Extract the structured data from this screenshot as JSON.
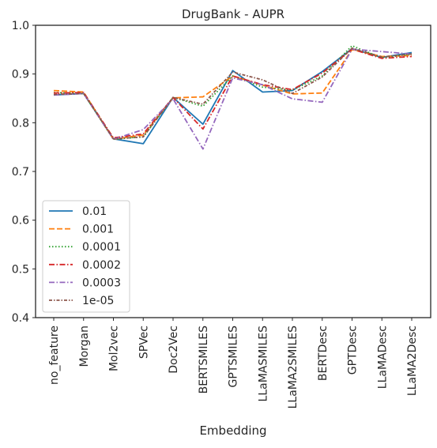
{
  "chart_data": {
    "type": "line",
    "title": "DrugBank - AUPR",
    "xlabel": "Embedding",
    "ylabel": "",
    "ylim": [
      0.4,
      1.0
    ],
    "yticks": [
      0.4,
      0.5,
      0.6,
      0.7,
      0.8,
      0.9,
      1.0
    ],
    "ytick_labels": [
      "0.4",
      "0.5",
      "0.6",
      "0.7",
      "0.8",
      "0.9",
      "1.0"
    ],
    "grid": false,
    "legend_position": "lower-left",
    "categories": [
      "no_feature",
      "Morgan",
      "Mol2vec",
      "SPVec",
      "Doc2Vec",
      "BERTSMILES",
      "GPTSMILES",
      "LLaMASMILES",
      "LLaMA2SMILES",
      "BERTDesc",
      "GPTDesc",
      "LLaMADesc",
      "LLaMA2Desc"
    ],
    "series": [
      {
        "name": "0.01",
        "color": "#1f77b4",
        "dash": "solid",
        "values": [
          0.857,
          0.86,
          0.767,
          0.757,
          0.852,
          0.797,
          0.907,
          0.863,
          0.866,
          0.905,
          0.952,
          0.934,
          0.944
        ]
      },
      {
        "name": "0.001",
        "color": "#ff7f0e",
        "dash": "dashed",
        "values": [
          0.866,
          0.863,
          0.766,
          0.775,
          0.851,
          0.853,
          0.896,
          0.877,
          0.859,
          0.861,
          0.95,
          0.936,
          0.938
        ]
      },
      {
        "name": "0.0001",
        "color": "#2ca02c",
        "dash": "dotted",
        "values": [
          0.862,
          0.86,
          0.766,
          0.771,
          0.852,
          0.834,
          0.896,
          0.873,
          0.867,
          0.896,
          0.958,
          0.933,
          0.941
        ]
      },
      {
        "name": "0.0002",
        "color": "#d62728",
        "dash": "dashdot",
        "values": [
          0.861,
          0.862,
          0.769,
          0.777,
          0.852,
          0.787,
          0.896,
          0.878,
          0.868,
          0.902,
          0.951,
          0.932,
          0.936
        ]
      },
      {
        "name": "0.0003",
        "color": "#9467bd",
        "dash": "dashdot",
        "values": [
          0.857,
          0.86,
          0.766,
          0.786,
          0.849,
          0.746,
          0.892,
          0.878,
          0.849,
          0.842,
          0.951,
          0.946,
          0.941
        ]
      },
      {
        "name": "1e-05",
        "color": "#8c564b",
        "dash": "densedashdot",
        "values": [
          0.858,
          0.86,
          0.767,
          0.771,
          0.852,
          0.838,
          0.904,
          0.888,
          0.86,
          0.894,
          0.953,
          0.935,
          0.941
        ]
      }
    ]
  }
}
